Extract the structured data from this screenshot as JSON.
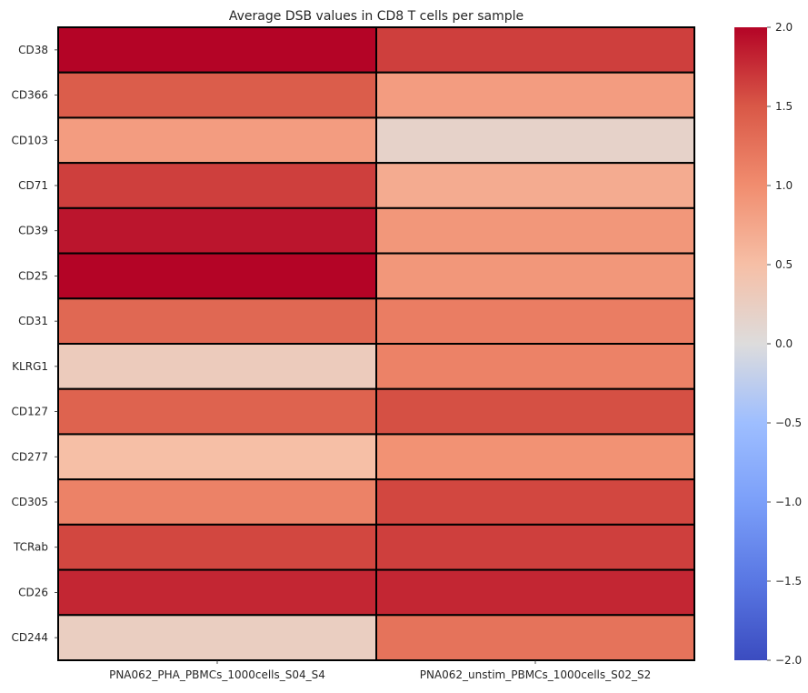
{
  "chart_data": {
    "type": "heatmap",
    "title": "Average DSB values in CD8 T cells per sample",
    "xlabel": "",
    "ylabel": "",
    "x_categories": [
      "PNA062_PHA_PBMCs_1000cells_S04_S4",
      "PNA062_unstim_PBMCs_1000cells_S02_S2"
    ],
    "y_categories": [
      "CD38",
      "CD366",
      "CD103",
      "CD71",
      "CD39",
      "CD25",
      "CD31",
      "KLRG1",
      "CD127",
      "CD277",
      "CD305",
      "TCRab",
      "CD26",
      "CD244"
    ],
    "values": [
      [
        2.05,
        1.65
      ],
      [
        1.45,
        0.85
      ],
      [
        0.85,
        0.18
      ],
      [
        1.65,
        0.7
      ],
      [
        1.9,
        0.9
      ],
      [
        2.1,
        0.9
      ],
      [
        1.35,
        1.15
      ],
      [
        0.3,
        1.1
      ],
      [
        1.4,
        1.55
      ],
      [
        0.5,
        0.95
      ],
      [
        1.1,
        1.6
      ],
      [
        1.6,
        1.65
      ],
      [
        1.8,
        1.8
      ],
      [
        0.25,
        1.25
      ]
    ],
    "colormap": "coolwarm",
    "vmin": -2.0,
    "vmax": 2.0,
    "colorbar_ticks": [
      "2.0",
      "1.5",
      "1.0",
      "0.5",
      "0.0",
      "−0.5",
      "−1.0",
      "−1.5",
      "−2.0"
    ],
    "colorbar_tick_values": [
      2.0,
      1.5,
      1.0,
      0.5,
      0.0,
      -0.5,
      -1.0,
      -1.5,
      -2.0
    ],
    "linecolor": "#000000",
    "grid": false,
    "legend": "colorbar-right"
  }
}
